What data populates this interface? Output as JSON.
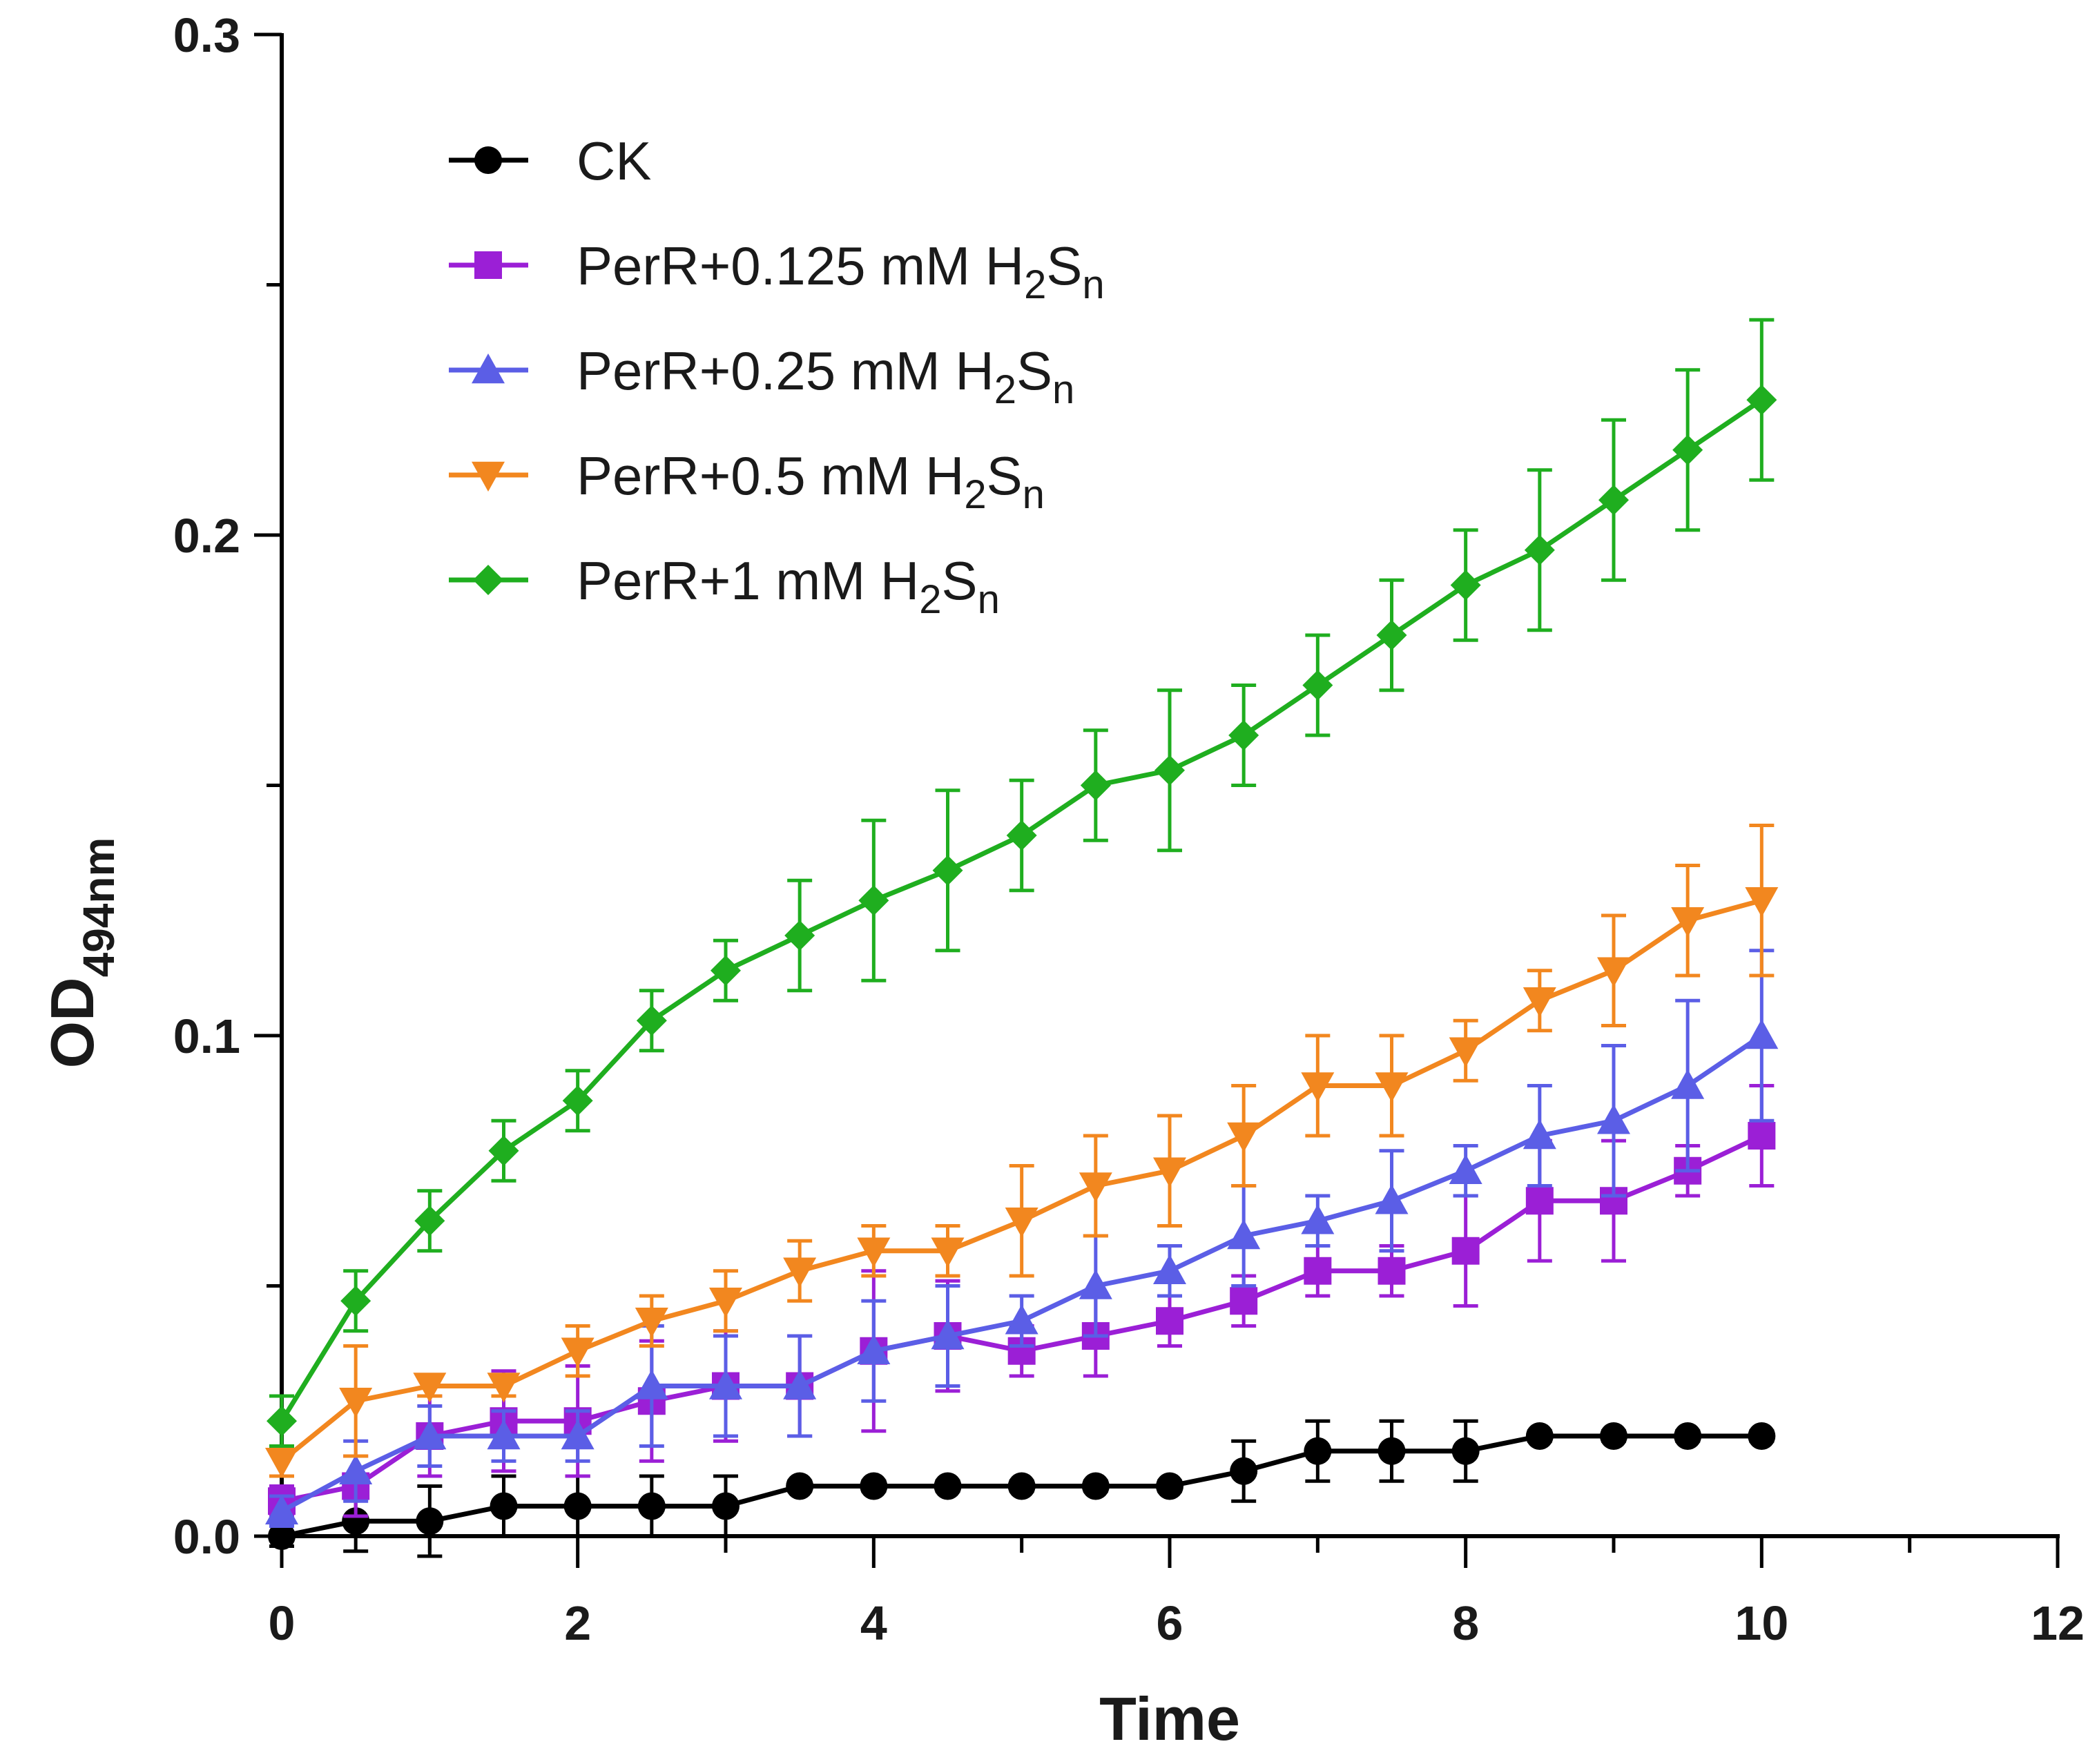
{
  "chart_data": {
    "type": "line",
    "title": "",
    "xlabel": "Time",
    "ylabel": "OD",
    "ylabel_subscript": "494nm",
    "xlim": [
      0,
      12
    ],
    "ylim": [
      0,
      0.3
    ],
    "xticks": [
      0,
      2,
      4,
      6,
      8,
      10,
      12
    ],
    "xtick_labels": [
      "0",
      "2",
      "4",
      "6",
      "8",
      "10",
      "12"
    ],
    "yticks": [
      0,
      0.1,
      0.2,
      0.3
    ],
    "ytick_labels": [
      "0.0",
      "0.1",
      "0.2",
      "0.3"
    ],
    "x": [
      0,
      0.5,
      1,
      1.5,
      2,
      2.5,
      3,
      3.5,
      4,
      4.5,
      5,
      5.5,
      6,
      6.5,
      7,
      7.5,
      8,
      8.5,
      9,
      9.5,
      10
    ],
    "legend_position": "top-left",
    "series": [
      {
        "name": "CK",
        "label_main": "CK",
        "label_sub": "",
        "label_tail": "",
        "marker": "circle",
        "color": "#000000",
        "values": [
          0.0,
          0.003,
          0.003,
          0.006,
          0.006,
          0.006,
          0.006,
          0.01,
          0.01,
          0.01,
          0.01,
          0.01,
          0.01,
          0.013,
          0.017,
          0.017,
          0.017,
          0.02,
          0.02,
          0.02,
          0.02
        ],
        "errors": [
          0.002,
          0.006,
          0.007,
          0.006,
          0.006,
          0.006,
          0.006,
          0.001,
          0.001,
          0.001,
          0.001,
          0.001,
          0.001,
          0.006,
          0.006,
          0.006,
          0.006,
          0.001,
          0.001,
          0.001,
          0.001
        ]
      },
      {
        "name": "PerR+0.125 mM H2Sn",
        "label_main": "PerR+0.125 mM H",
        "label_sub": "2",
        "label_tail": "S",
        "label_tail_sub": "n",
        "marker": "square",
        "color": "#9b1fd6",
        "values": [
          0.007,
          0.01,
          0.02,
          0.023,
          0.023,
          0.027,
          0.03,
          0.03,
          0.037,
          0.04,
          0.037,
          0.04,
          0.043,
          0.047,
          0.053,
          0.053,
          0.057,
          0.067,
          0.067,
          0.073,
          0.08
        ],
        "errors": [
          0.003,
          0.006,
          0.008,
          0.01,
          0.011,
          0.012,
          0.011,
          0.01,
          0.016,
          0.011,
          0.005,
          0.008,
          0.005,
          0.005,
          0.005,
          0.005,
          0.011,
          0.012,
          0.012,
          0.005,
          0.01
        ]
      },
      {
        "name": "PerR+0.25 mM H2Sn",
        "label_main": "PerR+0.25 mM H",
        "label_sub": "2",
        "label_tail": "S",
        "label_tail_sub": "n",
        "marker": "triangle-up",
        "color": "#5b5ee6",
        "values": [
          0.005,
          0.013,
          0.02,
          0.02,
          0.02,
          0.03,
          0.03,
          0.03,
          0.037,
          0.04,
          0.043,
          0.05,
          0.053,
          0.06,
          0.063,
          0.067,
          0.073,
          0.08,
          0.083,
          0.09,
          0.1
        ],
        "errors": [
          0.003,
          0.006,
          0.006,
          0.005,
          0.005,
          0.012,
          0.01,
          0.01,
          0.01,
          0.01,
          0.005,
          0.01,
          0.005,
          0.01,
          0.005,
          0.01,
          0.005,
          0.01,
          0.015,
          0.017,
          0.017
        ]
      },
      {
        "name": "PerR+0.5 mM H2Sn",
        "label_main": "PerR+0.5 mM H",
        "label_sub": "2",
        "label_tail": "S",
        "label_tail_sub": "n",
        "marker": "triangle-down",
        "color": "#f2871f",
        "values": [
          0.015,
          0.027,
          0.03,
          0.03,
          0.037,
          0.043,
          0.047,
          0.053,
          0.057,
          0.057,
          0.063,
          0.07,
          0.073,
          0.08,
          0.09,
          0.09,
          0.097,
          0.107,
          0.113,
          0.123,
          0.127
        ],
        "errors": [
          0.003,
          0.011,
          0.002,
          0.002,
          0.005,
          0.005,
          0.006,
          0.006,
          0.005,
          0.005,
          0.011,
          0.01,
          0.011,
          0.01,
          0.01,
          0.01,
          0.006,
          0.006,
          0.011,
          0.011,
          0.015
        ]
      },
      {
        "name": "PerR+1 mM H2Sn",
        "label_main": "PerR+1 mM H",
        "label_sub": "2",
        "label_tail": "S",
        "label_tail_sub": "n",
        "marker": "diamond",
        "color": "#1fae1f",
        "values": [
          0.023,
          0.047,
          0.063,
          0.077,
          0.087,
          0.103,
          0.113,
          0.12,
          0.127,
          0.133,
          0.14,
          0.15,
          0.153,
          0.16,
          0.17,
          0.18,
          0.19,
          0.197,
          0.207,
          0.217,
          0.227
        ],
        "errors": [
          0.005,
          0.006,
          0.006,
          0.006,
          0.006,
          0.006,
          0.006,
          0.011,
          0.016,
          0.016,
          0.011,
          0.011,
          0.016,
          0.01,
          0.01,
          0.011,
          0.011,
          0.016,
          0.016,
          0.016,
          0.016
        ]
      }
    ]
  }
}
